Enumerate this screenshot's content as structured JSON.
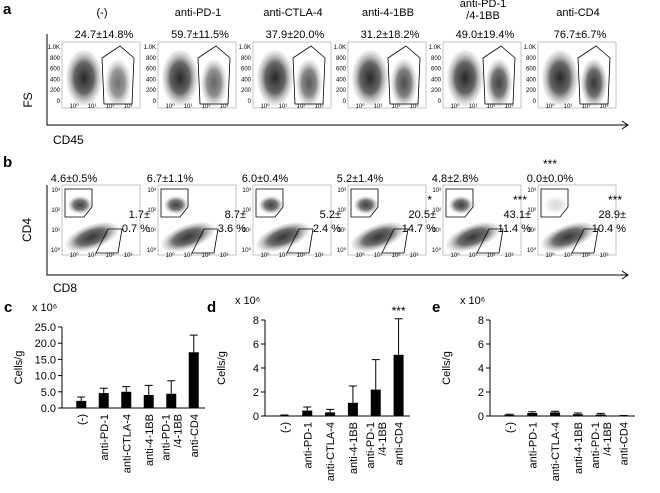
{
  "flow": {
    "a": {
      "label": "a",
      "headers": [
        "(-)",
        "anti-PD-1",
        "anti-CTLA-4",
        "anti-4-1BB",
        [
          "anti-PD-1",
          "/4-1BB"
        ],
        "anti-CD4"
      ],
      "percentages": [
        "24.7±14.8%",
        "59.7±11.5%",
        "37.9±20.0%",
        "31.2±18.2%",
        "49.0±19.4%",
        "76.7±6.7%"
      ],
      "y_axis_label": "FS",
      "x_axis_label": "CD45",
      "yticks": [
        "1.0K",
        "800",
        "600",
        "400",
        "200",
        "0"
      ],
      "xticks": [
        "10⁰",
        "10¹",
        "10²",
        "10³"
      ]
    },
    "b": {
      "label": "b",
      "upper_percentages": [
        "4.6±0.5%",
        "6.7±1.1%",
        "6.0±0.4%",
        "5.2±1.4%",
        "4.8±2.8%",
        "0.0±0.0%"
      ],
      "lower_percentages": [
        [
          "1.7±",
          "0.7 %"
        ],
        [
          "8.7±",
          "3.6 %"
        ],
        [
          "5.2±",
          "2.4 %"
        ],
        [
          "20.5±",
          "14.7 %"
        ],
        [
          "43.1±",
          "11.4 %"
        ],
        [
          "28.9±",
          "10.4 %"
        ]
      ],
      "upper_stars": [
        null,
        null,
        null,
        null,
        null,
        "***"
      ],
      "lower_stars": [
        null,
        null,
        null,
        "*",
        "***",
        "***"
      ],
      "y_axis_label": "CD4",
      "x_axis_label": "CD8",
      "yticks": [
        "10³",
        "10²",
        "10¹",
        "10⁰"
      ],
      "xticks": [
        "10⁰",
        "10¹",
        "10²",
        "10³"
      ]
    }
  },
  "chart_data": [
    {
      "type": "bar",
      "panel": "c",
      "multiplier": "x 10⁶",
      "y_label": "Cells/g",
      "color": "#000000",
      "categories": [
        "(-)",
        "anti-PD-1",
        "anti-CTLA-4",
        "anti-4-1BB",
        "anti-PD-1 /4-1BB",
        "anti-CD4"
      ],
      "values": [
        2.2,
        4.6,
        5.0,
        4.0,
        4.4,
        17.2
      ],
      "errors": [
        1.2,
        1.5,
        1.6,
        3.0,
        4.0,
        5.3
      ],
      "ylim": [
        0,
        25
      ],
      "yticks": [
        {
          "value": 0,
          "label": "0.0"
        },
        {
          "value": 5,
          "label": "5.0"
        },
        {
          "value": 10,
          "label": "10.0"
        },
        {
          "value": 15,
          "label": "15.0"
        },
        {
          "value": 20,
          "label": "20.0"
        },
        {
          "value": 25,
          "label": "25.0"
        }
      ],
      "annotations": [
        null,
        null,
        null,
        null,
        null,
        null
      ]
    },
    {
      "type": "bar",
      "panel": "d",
      "multiplier": "x 10⁶",
      "y_label": "Cells/g",
      "color": "#000000",
      "categories": [
        "(-)",
        "anti-PD-1",
        "anti-CTLA-4",
        "anti-4-1BB",
        "anti-PD-1 /4-1BB",
        "anti-CD4"
      ],
      "values": [
        0.05,
        0.45,
        0.3,
        1.1,
        2.2,
        5.1
      ],
      "errors": [
        0.03,
        0.3,
        0.25,
        1.4,
        2.5,
        3.0
      ],
      "ylim": [
        0,
        8
      ],
      "yticks": [
        0,
        2,
        4,
        6,
        8
      ],
      "annotations": [
        null,
        null,
        null,
        null,
        null,
        "***"
      ]
    },
    {
      "type": "bar",
      "panel": "e",
      "multiplier": "x 10⁶",
      "y_label": "Cells/g",
      "color": "#000000",
      "categories": [
        "(-)",
        "anti-PD-1",
        "anti-CTLA-4",
        "anti-4-1BB",
        "anti-PD-1 /4-1BB",
        "anti-CD4"
      ],
      "values": [
        0.1,
        0.25,
        0.3,
        0.15,
        0.12,
        0.02
      ],
      "errors": [
        0.05,
        0.1,
        0.1,
        0.1,
        0.1,
        0.02
      ],
      "ylim": [
        0,
        8
      ],
      "yticks": [
        0,
        2,
        4,
        6,
        8
      ],
      "annotations": [
        null,
        null,
        null,
        null,
        null,
        null
      ]
    }
  ]
}
